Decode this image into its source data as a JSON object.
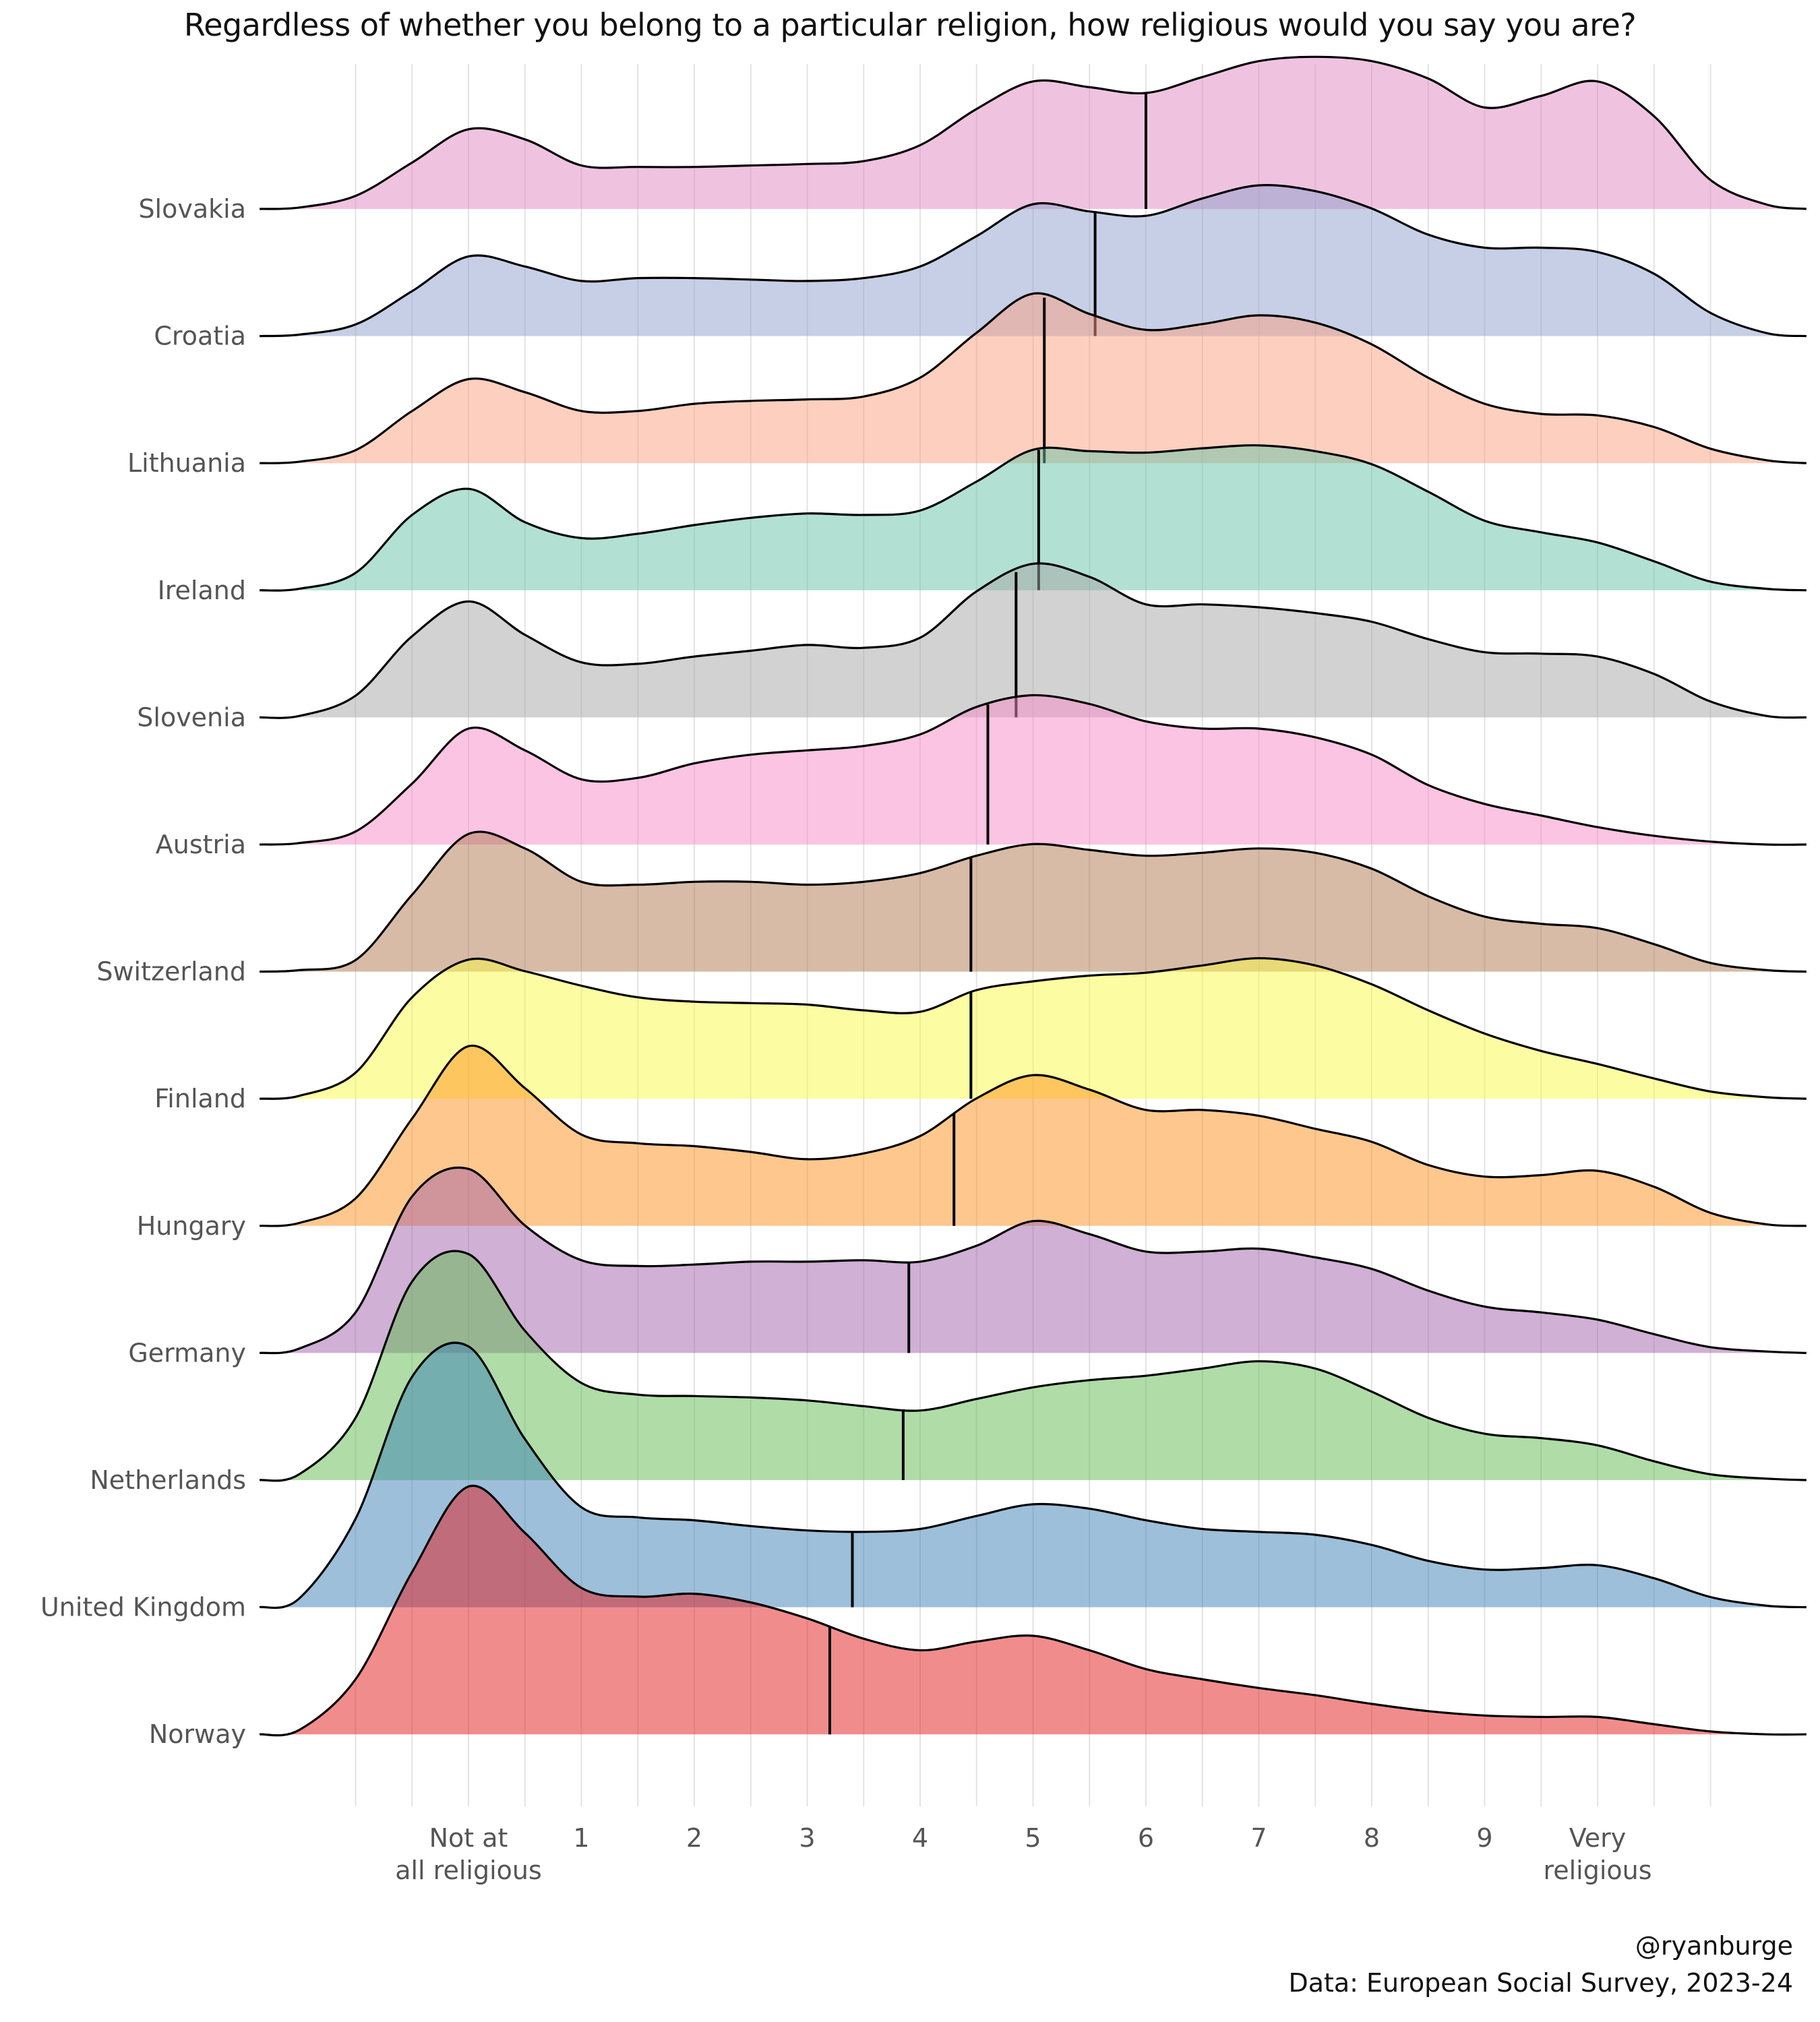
{
  "chart_data": {
    "type": "ridgeline",
    "title": "Regardless of whether you belong to a particular religion, how religious would you say you are?",
    "x_ticks": [
      {
        "value": 0,
        "label": [
          "Not at",
          "all religious"
        ]
      },
      {
        "value": 1,
        "label": [
          "1"
        ]
      },
      {
        "value": 2,
        "label": [
          "2"
        ]
      },
      {
        "value": 3,
        "label": [
          "3"
        ]
      },
      {
        "value": 4,
        "label": [
          "4"
        ]
      },
      {
        "value": 5,
        "label": [
          "5"
        ]
      },
      {
        "value": 6,
        "label": [
          "6"
        ]
      },
      {
        "value": 7,
        "label": [
          "7"
        ]
      },
      {
        "value": 8,
        "label": [
          "8"
        ]
      },
      {
        "value": 9,
        "label": [
          "9"
        ]
      },
      {
        "value": 10,
        "label": [
          "Very",
          "religious"
        ]
      }
    ],
    "xlim": [
      -1.85,
      11.85
    ],
    "density_x": [
      -1.85,
      -1.5,
      -1.0,
      -0.5,
      0.0,
      0.5,
      1.0,
      1.5,
      2.0,
      2.5,
      3.0,
      3.5,
      4.0,
      4.5,
      5.0,
      5.5,
      6.0,
      6.5,
      7.0,
      7.5,
      8.0,
      8.5,
      9.0,
      9.5,
      10.0,
      10.5,
      11.0,
      11.5,
      11.85
    ],
    "grid": true,
    "legend": "none",
    "series": [
      {
        "name": "Slovakia",
        "color": "#e088c2",
        "mean": 6.0,
        "density": [
          0,
          0.01,
          0.09,
          0.32,
          0.55,
          0.48,
          0.3,
          0.29,
          0.29,
          0.3,
          0.31,
          0.33,
          0.44,
          0.69,
          0.88,
          0.84,
          0.8,
          0.91,
          1.02,
          1.05,
          1.02,
          0.9,
          0.7,
          0.78,
          0.88,
          0.64,
          0.2,
          0.03,
          0
        ]
      },
      {
        "name": "Croatia",
        "color": "#8e9fcc",
        "mean": 5.55,
        "density": [
          0,
          0.01,
          0.08,
          0.31,
          0.55,
          0.48,
          0.38,
          0.4,
          0.4,
          0.39,
          0.38,
          0.4,
          0.48,
          0.69,
          0.91,
          0.86,
          0.83,
          0.95,
          1.04,
          1.0,
          0.88,
          0.7,
          0.61,
          0.61,
          0.58,
          0.43,
          0.16,
          0.02,
          0
        ]
      },
      {
        "name": "Lithuania",
        "color": "#f99f7f",
        "mean": 5.1,
        "density": [
          0,
          0.01,
          0.09,
          0.36,
          0.58,
          0.49,
          0.36,
          0.36,
          0.41,
          0.43,
          0.44,
          0.46,
          0.59,
          0.9,
          1.17,
          1.03,
          0.92,
          0.96,
          1.02,
          0.97,
          0.82,
          0.59,
          0.41,
          0.34,
          0.33,
          0.25,
          0.1,
          0.02,
          0
        ]
      },
      {
        "name": "Ireland",
        "color": "#66c2a5",
        "mean": 5.05,
        "density": [
          0,
          0.01,
          0.12,
          0.52,
          0.7,
          0.47,
          0.36,
          0.39,
          0.45,
          0.5,
          0.53,
          0.52,
          0.55,
          0.75,
          0.97,
          0.96,
          0.95,
          0.98,
          1.0,
          0.96,
          0.87,
          0.68,
          0.48,
          0.4,
          0.33,
          0.2,
          0.06,
          0.01,
          0
        ]
      },
      {
        "name": "Slovenia",
        "color": "#a6a6a6",
        "mean": 4.85,
        "density": [
          0,
          0.01,
          0.15,
          0.56,
          0.8,
          0.57,
          0.38,
          0.37,
          0.42,
          0.46,
          0.5,
          0.48,
          0.55,
          0.87,
          1.06,
          0.97,
          0.78,
          0.78,
          0.76,
          0.72,
          0.66,
          0.54,
          0.45,
          0.44,
          0.42,
          0.3,
          0.11,
          0.01,
          0
        ]
      },
      {
        "name": "Austria",
        "color": "#f78ac6",
        "mean": 4.6,
        "density": [
          0,
          0.01,
          0.09,
          0.42,
          0.8,
          0.65,
          0.45,
          0.46,
          0.56,
          0.62,
          0.65,
          0.68,
          0.76,
          0.95,
          1.03,
          0.97,
          0.85,
          0.8,
          0.8,
          0.74,
          0.62,
          0.41,
          0.28,
          0.2,
          0.12,
          0.06,
          0.02,
          0,
          0
        ]
      },
      {
        "name": "Switzerland",
        "color": "#b07850",
        "mean": 4.45,
        "density": [
          0,
          0.01,
          0.08,
          0.53,
          0.95,
          0.85,
          0.62,
          0.6,
          0.62,
          0.62,
          0.6,
          0.62,
          0.68,
          0.8,
          0.88,
          0.84,
          0.8,
          0.82,
          0.85,
          0.82,
          0.71,
          0.52,
          0.38,
          0.33,
          0.3,
          0.19,
          0.06,
          0.01,
          0
        ]
      },
      {
        "name": "Finland",
        "color": "#faf946",
        "mean": 4.45,
        "density": [
          0,
          0.02,
          0.18,
          0.7,
          0.96,
          0.88,
          0.78,
          0.7,
          0.67,
          0.66,
          0.65,
          0.61,
          0.6,
          0.75,
          0.81,
          0.85,
          0.87,
          0.92,
          0.97,
          0.92,
          0.79,
          0.61,
          0.45,
          0.33,
          0.24,
          0.14,
          0.05,
          0.01,
          0
        ]
      },
      {
        "name": "Hungary",
        "color": "#fe8f1c",
        "mean": 4.3,
        "density": [
          0,
          0.02,
          0.19,
          0.74,
          1.24,
          0.95,
          0.63,
          0.57,
          0.55,
          0.51,
          0.46,
          0.5,
          0.62,
          0.88,
          1.04,
          0.94,
          0.8,
          0.8,
          0.76,
          0.67,
          0.58,
          0.42,
          0.34,
          0.35,
          0.38,
          0.27,
          0.09,
          0.01,
          0
        ]
      },
      {
        "name": "Germany",
        "color": "#a261a9",
        "mean": 3.9,
        "density": [
          0,
          0.03,
          0.28,
          1.08,
          1.27,
          0.88,
          0.64,
          0.6,
          0.61,
          0.63,
          0.63,
          0.64,
          0.63,
          0.74,
          0.91,
          0.82,
          0.7,
          0.7,
          0.72,
          0.66,
          0.58,
          0.43,
          0.32,
          0.28,
          0.23,
          0.13,
          0.04,
          0.01,
          0
        ]
      },
      {
        "name": "Netherlands",
        "color": "#5fb94f",
        "mean": 3.85,
        "density": [
          0,
          0.04,
          0.43,
          1.37,
          1.56,
          1.03,
          0.67,
          0.59,
          0.58,
          0.57,
          0.55,
          0.51,
          0.48,
          0.56,
          0.64,
          0.69,
          0.72,
          0.77,
          0.82,
          0.77,
          0.61,
          0.43,
          0.32,
          0.29,
          0.24,
          0.13,
          0.04,
          0.01,
          0
        ]
      },
      {
        "name": "United Kingdom",
        "color": "#3b7fb6",
        "mean": 3.4,
        "density": [
          0,
          0.06,
          0.61,
          1.59,
          1.8,
          1.16,
          0.69,
          0.62,
          0.6,
          0.56,
          0.53,
          0.52,
          0.54,
          0.63,
          0.71,
          0.68,
          0.6,
          0.54,
          0.52,
          0.5,
          0.43,
          0.32,
          0.26,
          0.27,
          0.29,
          0.2,
          0.07,
          0.01,
          0
        ]
      },
      {
        "name": "Norway",
        "color": "#e31a1c",
        "mean": 3.2,
        "density": [
          0,
          0.03,
          0.38,
          1.12,
          1.71,
          1.39,
          1.01,
          0.95,
          0.97,
          0.91,
          0.8,
          0.66,
          0.58,
          0.64,
          0.68,
          0.58,
          0.45,
          0.38,
          0.32,
          0.27,
          0.21,
          0.16,
          0.13,
          0.12,
          0.12,
          0.07,
          0.02,
          0,
          0
        ]
      }
    ]
  },
  "caption": {
    "handle": "@ryanburge",
    "source": "Data: European Social Survey, 2023-24"
  }
}
